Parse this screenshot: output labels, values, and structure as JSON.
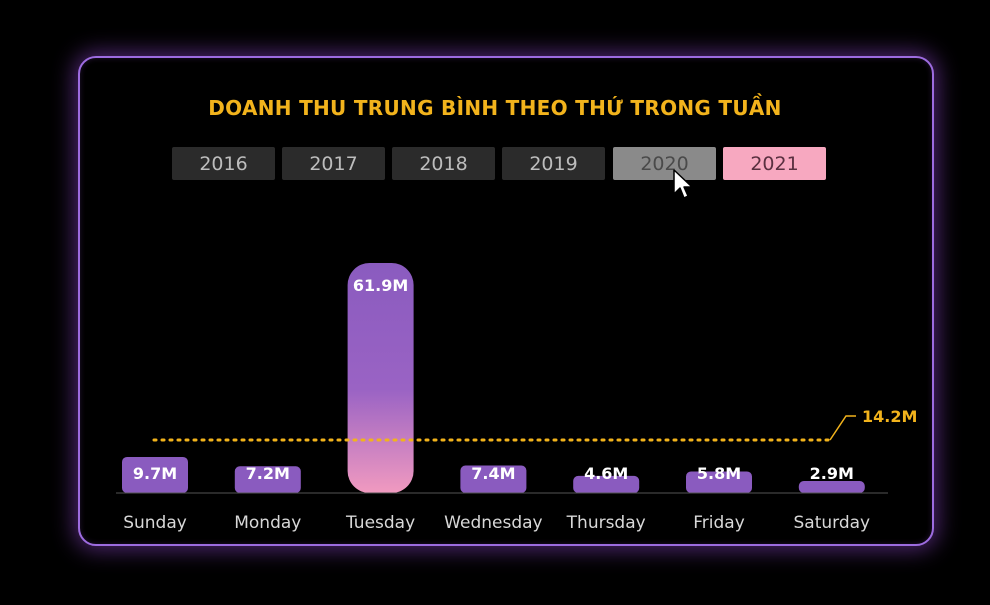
{
  "title": "DOANH THU TRUNG BÌNH THEO THỨ TRONG TUẦN",
  "years": [
    "2016",
    "2017",
    "2018",
    "2019",
    "2020",
    "2021"
  ],
  "selected_year": "2021",
  "hovered_year": "2020",
  "colors": {
    "title": "#f2b31c",
    "bar_top": "#8a5bbf",
    "bar_bottom": "#f19ac0",
    "average_line": "#f2b31c",
    "card_border": "#9d6ce0"
  },
  "chart_data": {
    "type": "bar",
    "title": "DOANH THU TRUNG BÌNH THEO THỨ TRONG TUẦN",
    "categories": [
      "Sunday",
      "Monday",
      "Tuesday",
      "Wednesday",
      "Thursday",
      "Friday",
      "Saturday"
    ],
    "values": [
      9.7,
      7.2,
      61.9,
      7.4,
      4.6,
      5.8,
      2.9
    ],
    "data_labels": [
      "9.7M",
      "7.2M",
      "61.9M",
      "7.4M",
      "4.6M",
      "5.8M",
      "2.9M"
    ],
    "average": 14.2,
    "average_label": "14.2M",
    "xlabel": "",
    "ylabel": "",
    "ylim": [
      0,
      61.9
    ],
    "grid": false,
    "legend": "none"
  }
}
